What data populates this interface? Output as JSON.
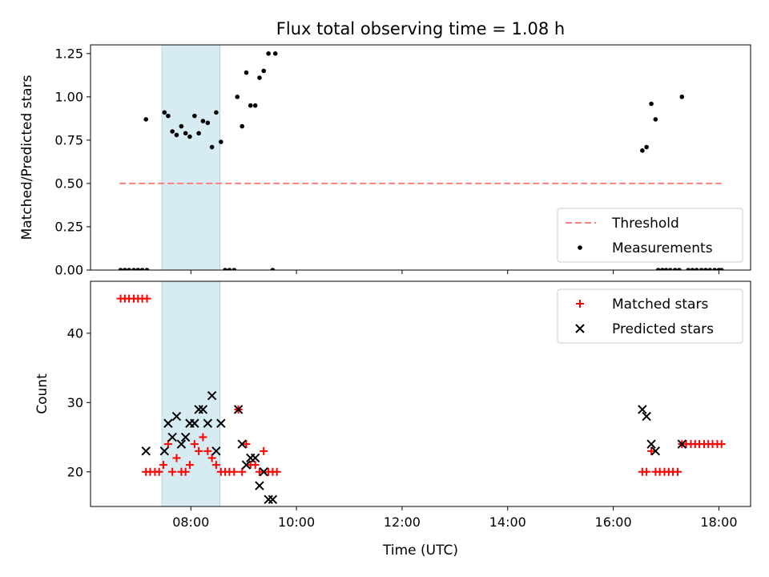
{
  "chart_data": {
    "title": "Flux total observing time = 1.08 h",
    "xlabel": "Time (UTC)",
    "x_units": "hours (UTC)",
    "xlim": [
      6.1,
      18.6
    ],
    "xticks": [
      {
        "value": 8,
        "label": "08:00"
      },
      {
        "value": 10,
        "label": "10:00"
      },
      {
        "value": 12,
        "label": "12:00"
      },
      {
        "value": 14,
        "label": "14:00"
      },
      {
        "value": 16,
        "label": "16:00"
      },
      {
        "value": 18,
        "label": "18:00"
      }
    ],
    "shaded_span": {
      "x0": 7.45,
      "x1": 8.55,
      "color": "#add8e6"
    },
    "panels": [
      {
        "type": "scatter",
        "ylabel": "Matched/Predicted stars",
        "ylim": [
          0,
          1.3
        ],
        "yticks": [
          {
            "value": 0,
            "label": "0.00"
          },
          {
            "value": 0.25,
            "label": "0.25"
          },
          {
            "value": 0.5,
            "label": "0.50"
          },
          {
            "value": 0.75,
            "label": "0.75"
          },
          {
            "value": 1.0,
            "label": "1.00"
          },
          {
            "value": 1.25,
            "label": "1.25"
          }
        ],
        "threshold": {
          "name": "Threshold",
          "value": 0.5,
          "x0": 6.65,
          "x1": 18.05,
          "color": "#ff7f7f"
        },
        "legend_position": "lower right",
        "series": [
          {
            "name": "Measurements",
            "marker": "dot",
            "color": "#000000",
            "points": [
              [
                6.67,
                0
              ],
              [
                6.75,
                0
              ],
              [
                6.83,
                0
              ],
              [
                6.92,
                0
              ],
              [
                7.0,
                0
              ],
              [
                7.08,
                0
              ],
              [
                7.17,
                0
              ],
              [
                7.15,
                0.87
              ],
              [
                7.5,
                0.91
              ],
              [
                7.57,
                0.89
              ],
              [
                7.65,
                0.8
              ],
              [
                7.73,
                0.78
              ],
              [
                7.82,
                0.83
              ],
              [
                7.9,
                0.79
              ],
              [
                7.98,
                0.77
              ],
              [
                8.07,
                0.89
              ],
              [
                8.15,
                0.79
              ],
              [
                8.23,
                0.86
              ],
              [
                8.32,
                0.85
              ],
              [
                8.4,
                0.71
              ],
              [
                8.48,
                0.91
              ],
              [
                8.57,
                0.74
              ],
              [
                8.65,
                0
              ],
              [
                8.73,
                0
              ],
              [
                8.82,
                0
              ],
              [
                8.88,
                1.0
              ],
              [
                8.97,
                0.83
              ],
              [
                9.05,
                1.14
              ],
              [
                9.13,
                0.95
              ],
              [
                9.22,
                0.95
              ],
              [
                9.3,
                1.11
              ],
              [
                9.38,
                1.15
              ],
              [
                9.47,
                1.25
              ],
              [
                9.55,
                0
              ],
              [
                9.6,
                1.25
              ],
              [
                16.55,
                0.69
              ],
              [
                16.63,
                0.71
              ],
              [
                16.72,
                0.96
              ],
              [
                16.8,
                0.87
              ],
              [
                17.3,
                1.0
              ],
              [
                16.85,
                0
              ],
              [
                16.93,
                0
              ],
              [
                17.0,
                0
              ],
              [
                17.08,
                0
              ],
              [
                17.17,
                0
              ],
              [
                17.25,
                0
              ],
              [
                17.42,
                0
              ],
              [
                17.5,
                0
              ],
              [
                17.58,
                0
              ],
              [
                17.67,
                0
              ],
              [
                17.75,
                0
              ],
              [
                17.83,
                0
              ],
              [
                17.92,
                0
              ],
              [
                18.0,
                0
              ],
              [
                18.05,
                0
              ]
            ]
          }
        ]
      },
      {
        "type": "scatter",
        "ylabel": "Count",
        "ylim": [
          15,
          47.5
        ],
        "yticks": [
          {
            "value": 20,
            "label": "20"
          },
          {
            "value": 30,
            "label": "30"
          },
          {
            "value": 40,
            "label": "40"
          }
        ],
        "legend_position": "upper right",
        "series": [
          {
            "name": "Matched stars",
            "marker": "plus",
            "color": "#ff0000",
            "points": [
              [
                6.67,
                45
              ],
              [
                6.75,
                45
              ],
              [
                6.83,
                45
              ],
              [
                6.92,
                45
              ],
              [
                7.0,
                45
              ],
              [
                7.08,
                45
              ],
              [
                7.17,
                45
              ],
              [
                7.15,
                20
              ],
              [
                7.23,
                20
              ],
              [
                7.32,
                20
              ],
              [
                7.4,
                20
              ],
              [
                7.48,
                21
              ],
              [
                7.57,
                24
              ],
              [
                7.65,
                20
              ],
              [
                7.73,
                22
              ],
              [
                7.82,
                20
              ],
              [
                7.9,
                20
              ],
              [
                7.98,
                21
              ],
              [
                8.07,
                24
              ],
              [
                8.15,
                23
              ],
              [
                8.23,
                25
              ],
              [
                8.32,
                23
              ],
              [
                8.4,
                22
              ],
              [
                8.48,
                21
              ],
              [
                8.57,
                20
              ],
              [
                8.65,
                20
              ],
              [
                8.73,
                20
              ],
              [
                8.82,
                20
              ],
              [
                8.9,
                29
              ],
              [
                8.97,
                20
              ],
              [
                9.05,
                24
              ],
              [
                9.13,
                21
              ],
              [
                9.22,
                21
              ],
              [
                9.3,
                20
              ],
              [
                9.38,
                23
              ],
              [
                9.47,
                20
              ],
              [
                9.55,
                20
              ],
              [
                9.63,
                20
              ],
              [
                16.55,
                20
              ],
              [
                16.63,
                20
              ],
              [
                16.72,
                23
              ],
              [
                16.8,
                20
              ],
              [
                16.88,
                20
              ],
              [
                16.97,
                20
              ],
              [
                17.05,
                20
              ],
              [
                17.13,
                20
              ],
              [
                17.22,
                20
              ],
              [
                17.3,
                24
              ],
              [
                17.38,
                24
              ],
              [
                17.47,
                24
              ],
              [
                17.55,
                24
              ],
              [
                17.63,
                24
              ],
              [
                17.72,
                24
              ],
              [
                17.8,
                24
              ],
              [
                17.88,
                24
              ],
              [
                17.97,
                24
              ],
              [
                18.05,
                24
              ]
            ]
          },
          {
            "name": "Predicted stars",
            "marker": "x",
            "color": "#000000",
            "points": [
              [
                7.15,
                23
              ],
              [
                7.5,
                23
              ],
              [
                7.57,
                27
              ],
              [
                7.65,
                25
              ],
              [
                7.73,
                28
              ],
              [
                7.82,
                24
              ],
              [
                7.9,
                25
              ],
              [
                7.98,
                27
              ],
              [
                8.07,
                27
              ],
              [
                8.15,
                29
              ],
              [
                8.23,
                29
              ],
              [
                8.32,
                27
              ],
              [
                8.4,
                31
              ],
              [
                8.48,
                23
              ],
              [
                8.57,
                27
              ],
              [
                8.9,
                29
              ],
              [
                8.97,
                24
              ],
              [
                9.05,
                21
              ],
              [
                9.13,
                22
              ],
              [
                9.22,
                22
              ],
              [
                9.3,
                18
              ],
              [
                9.38,
                20
              ],
              [
                9.47,
                16
              ],
              [
                9.55,
                16
              ],
              [
                16.55,
                29
              ],
              [
                16.63,
                28
              ],
              [
                16.72,
                24
              ],
              [
                16.8,
                23
              ],
              [
                17.3,
                24
              ]
            ]
          }
        ]
      }
    ]
  }
}
